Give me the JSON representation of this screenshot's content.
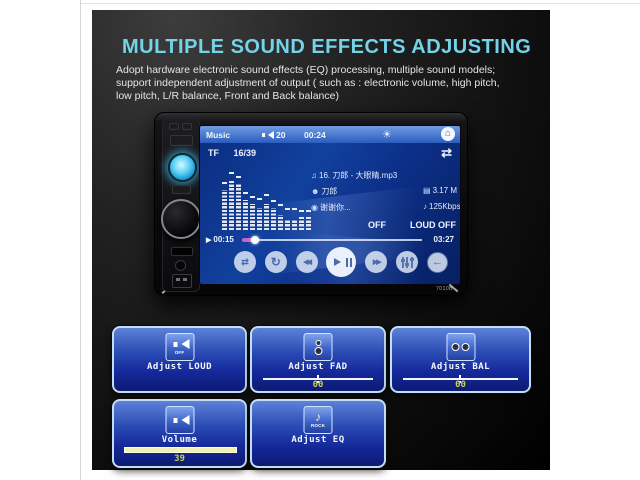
{
  "header": {
    "title": "MULTIPLE SOUND EFFECTS ADJUSTING",
    "title_color": "#74d3e9",
    "description_lines": [
      "Adopt hardware electronic sound effects (EQ) processing, multiple sound models;",
      "support independent adjustment of output ( such as : electronic volume, high pitch,",
      "low pitch, L/R balance, Front and Back balance)"
    ]
  },
  "player": {
    "model": "7010B",
    "status_bar": {
      "mode": "Music",
      "volume": "20",
      "time": "00:24"
    },
    "source_row": {
      "source": "TF",
      "track_index": "16/39"
    },
    "track_info": {
      "title": "16. 刀郎 - 大眼睛.mp3",
      "artist": "刀郎",
      "file_size": "3.17 M",
      "album": "谢谢你...",
      "bitrate": "125Kbps"
    },
    "flags": {
      "eq_state": "OFF",
      "loudness_state": "LOUD OFF"
    },
    "progress": {
      "elapsed": "00:15",
      "total": "03:27",
      "percent": 7
    },
    "spectrum": {
      "bars": [
        40,
        50,
        46,
        30,
        26,
        22,
        26,
        22,
        15,
        11,
        11,
        13,
        13
      ],
      "caps": [
        46,
        56,
        52,
        36,
        32,
        30,
        34,
        28,
        24,
        20,
        20,
        18,
        18
      ]
    },
    "transport_buttons": [
      "shuffle",
      "repeat",
      "previous",
      "play-pause",
      "next",
      "equalizer",
      "back"
    ]
  },
  "icons": {
    "sun": "☀",
    "home": "⌂",
    "loop": "⇄",
    "note": "♫",
    "artist": "☻",
    "file": "▤",
    "disc": "◉",
    "note_small": "♪",
    "play_cursor": "▶",
    "shuffle": "⇄",
    "repeat": "↻",
    "previous": "◀◀",
    "next": "▶▶",
    "back": "←"
  },
  "panels": [
    {
      "label": "Adjust LOUD",
      "badge": "OFF"
    },
    {
      "label": "Adjust FAD",
      "value": "00"
    },
    {
      "label": "Adjust BAL",
      "value": "00"
    },
    {
      "label": "Volume",
      "value": "39"
    },
    {
      "label": "Adjust EQ",
      "badge": "ROCK"
    }
  ],
  "colors": {
    "accent_title": "#74d3e9",
    "panel_blue_top": "#5d82d8",
    "panel_blue_bottom": "#0d1b72",
    "panel_border": "#c2ddf4",
    "value_yellow": "#c9d04f",
    "progress_pink": "#c95fce",
    "glow_button_cyan": "#5fd2f5",
    "screen_blue": "#11419e"
  }
}
